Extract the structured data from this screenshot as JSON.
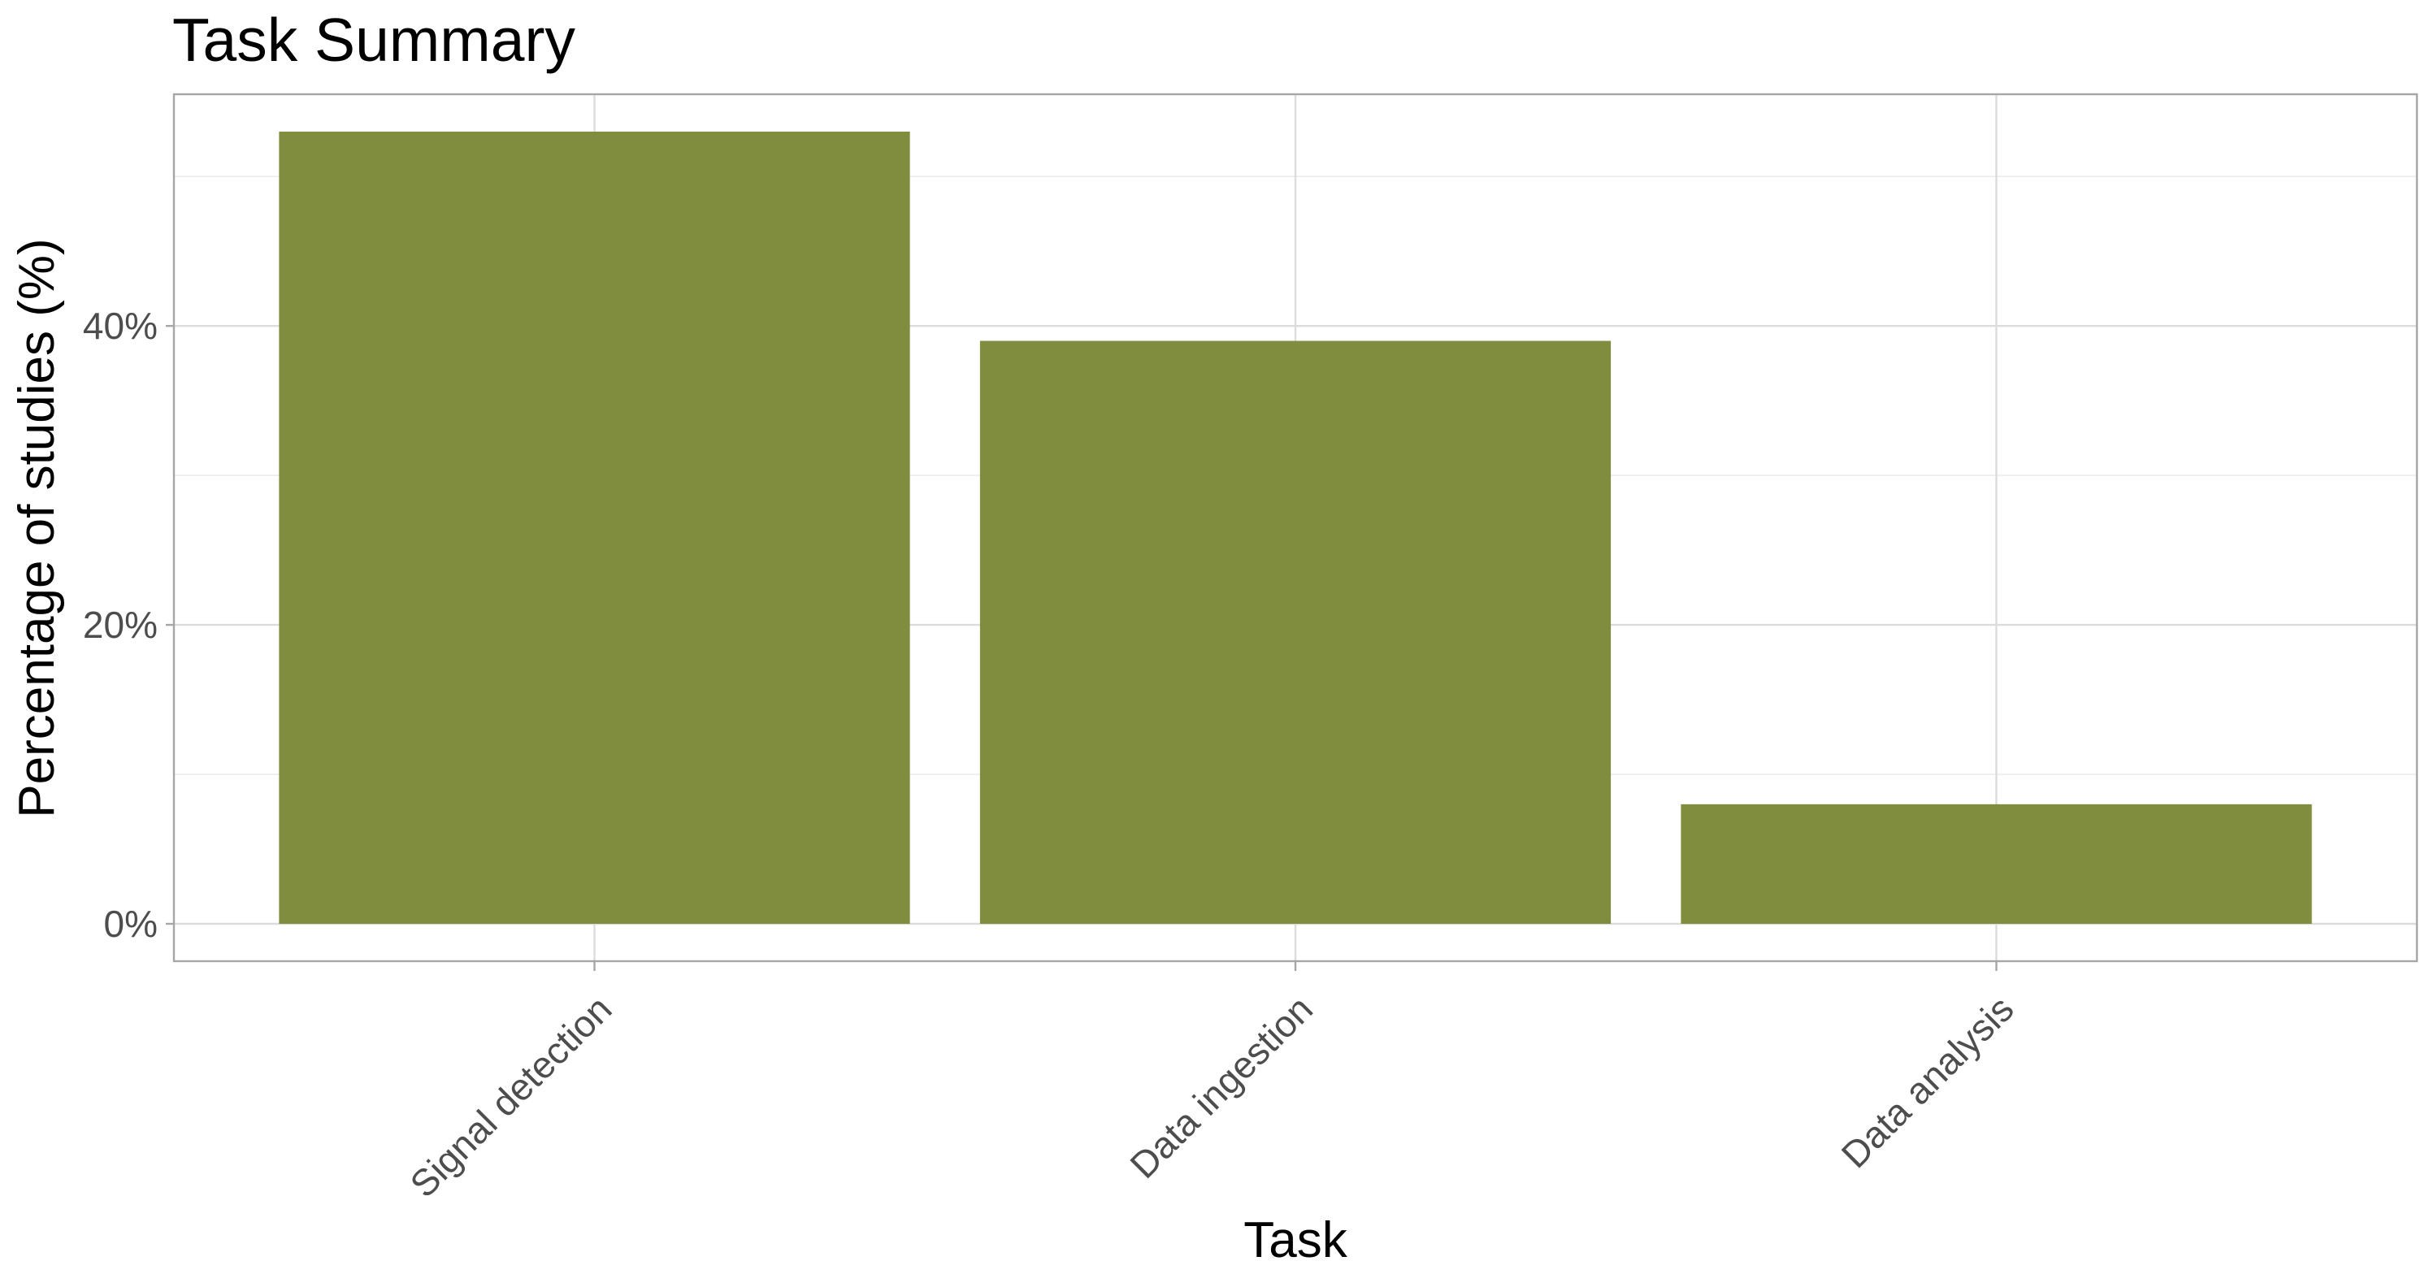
{
  "chart_data": {
    "type": "bar",
    "title": "Task Summary",
    "xlabel": "Task",
    "ylabel": "Percentage of studies (%)",
    "categories": [
      "Signal detection",
      "Data ingestion",
      "Data analysis"
    ],
    "values": [
      53,
      39,
      8
    ],
    "ylim": [
      -2.5,
      55.5
    ],
    "yticks": [
      0,
      20,
      40
    ],
    "ytick_labels": [
      "0%",
      "20%",
      "40%"
    ],
    "minor_yticks": [
      10,
      30,
      50
    ],
    "grid": true,
    "legend": "none",
    "bar_color": "#808d3e"
  }
}
